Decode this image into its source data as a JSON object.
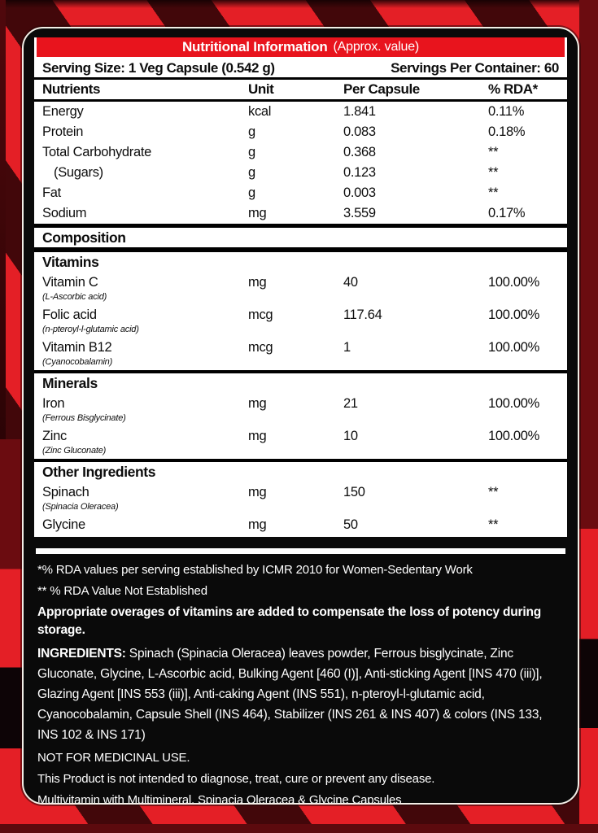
{
  "colors": {
    "red": "#e41f26",
    "dark_red": "#6b0c10",
    "black": "#0a0a0a",
    "cream_outline": "#f2efe7",
    "white": "#ffffff"
  },
  "header": {
    "title": "Nutritional Information",
    "subtitle": "(Approx. value)"
  },
  "serving": {
    "size_label": "Serving Size: 1 Veg Capsule (0.542 g)",
    "container_label": "Servings Per Container: 60"
  },
  "table": {
    "headers": [
      "Nutrients",
      "Unit",
      "Per Capsule",
      "% RDA*"
    ],
    "rows": [
      {
        "type": "data",
        "name": "Energy",
        "unit": "kcal",
        "per_capsule": "1.841",
        "rda": "0.11%"
      },
      {
        "type": "data",
        "name": "Protein",
        "unit": "g",
        "per_capsule": "0.083",
        "rda": "0.18%"
      },
      {
        "type": "data",
        "name": "Total Carbohydrate",
        "unit": "g",
        "per_capsule": "0.368",
        "rda": "**"
      },
      {
        "type": "data",
        "name": "(Sugars)",
        "indent": true,
        "unit": "g",
        "per_capsule": "0.123",
        "rda": "**"
      },
      {
        "type": "data",
        "name": "Fat",
        "unit": "g",
        "per_capsule": "0.003",
        "rda": "**"
      },
      {
        "type": "data",
        "name": "Sodium",
        "unit": "mg",
        "per_capsule": "3.559",
        "rda": "0.17%"
      },
      {
        "type": "section",
        "name": "Composition"
      },
      {
        "type": "subsection",
        "name": "Vitamins"
      },
      {
        "type": "data",
        "name": "Vitamin C",
        "sub": "(L-Ascorbic acid)",
        "unit": "mg",
        "per_capsule": "40",
        "rda": "100.00%"
      },
      {
        "type": "data",
        "name": "Folic acid",
        "sub": "(n-pteroyl-l-glutamic acid)",
        "unit": "mcg",
        "per_capsule": "117.64",
        "rda": "100.00%"
      },
      {
        "type": "data",
        "name": "Vitamin B12",
        "sub": "(Cyanocobalamin)",
        "unit": "mcg",
        "per_capsule": "1",
        "rda": "100.00%"
      },
      {
        "type": "subsection",
        "name": "Minerals"
      },
      {
        "type": "data",
        "name": "Iron",
        "sub": "(Ferrous Bisglycinate)",
        "unit": "mg",
        "per_capsule": "21",
        "rda": "100.00%"
      },
      {
        "type": "data",
        "name": "Zinc",
        "sub": "(Zinc Gluconate)",
        "unit": "mg",
        "per_capsule": "10",
        "rda": "100.00%"
      },
      {
        "type": "subsection",
        "name": "Other Ingredients"
      },
      {
        "type": "data",
        "name": "Spinach",
        "sub": "(Spinacia Oleracea)",
        "unit": "mg",
        "per_capsule": "150",
        "rda": "**"
      },
      {
        "type": "data",
        "name": "Glycine",
        "unit": "mg",
        "per_capsule": "50",
        "rda": "**"
      }
    ]
  },
  "footnotes": {
    "rda_note": "*% RDA values per serving established by ICMR 2010 for Women-Sedentary Work",
    "not_established_note": "** % RDA Value Not Established",
    "overages_note": "Appropriate overages of vitamins are added to compensate the loss of potency during storage.",
    "ingredients_label": "INGREDIENTS:",
    "ingredients_text": " Spinach (Spinacia Oleracea) leaves powder, Ferrous bisglycinate, Zinc Gluconate, Glycine, L-Ascorbic acid, Bulking Agent [460 (I)], Anti-sticking Agent [INS 470 (iii)], Glazing Agent [INS 553 (iii)], Anti-caking Agent (INS 551), n-pteroyl-l-glutamic acid, Cyanocobalamin, Capsule Shell (INS 464), Stabilizer (INS 261 & INS 407) & colors (INS 133, INS 102 & INS 171)",
    "medicinal_note": "NOT FOR MEDICINAL USE.",
    "disclaimer": "This Product is not intended to diagnose, treat, cure or prevent any disease.",
    "product_description": "Multivitamin with Multimineral, Spinacia Oleracea & Glycine Capsules"
  }
}
